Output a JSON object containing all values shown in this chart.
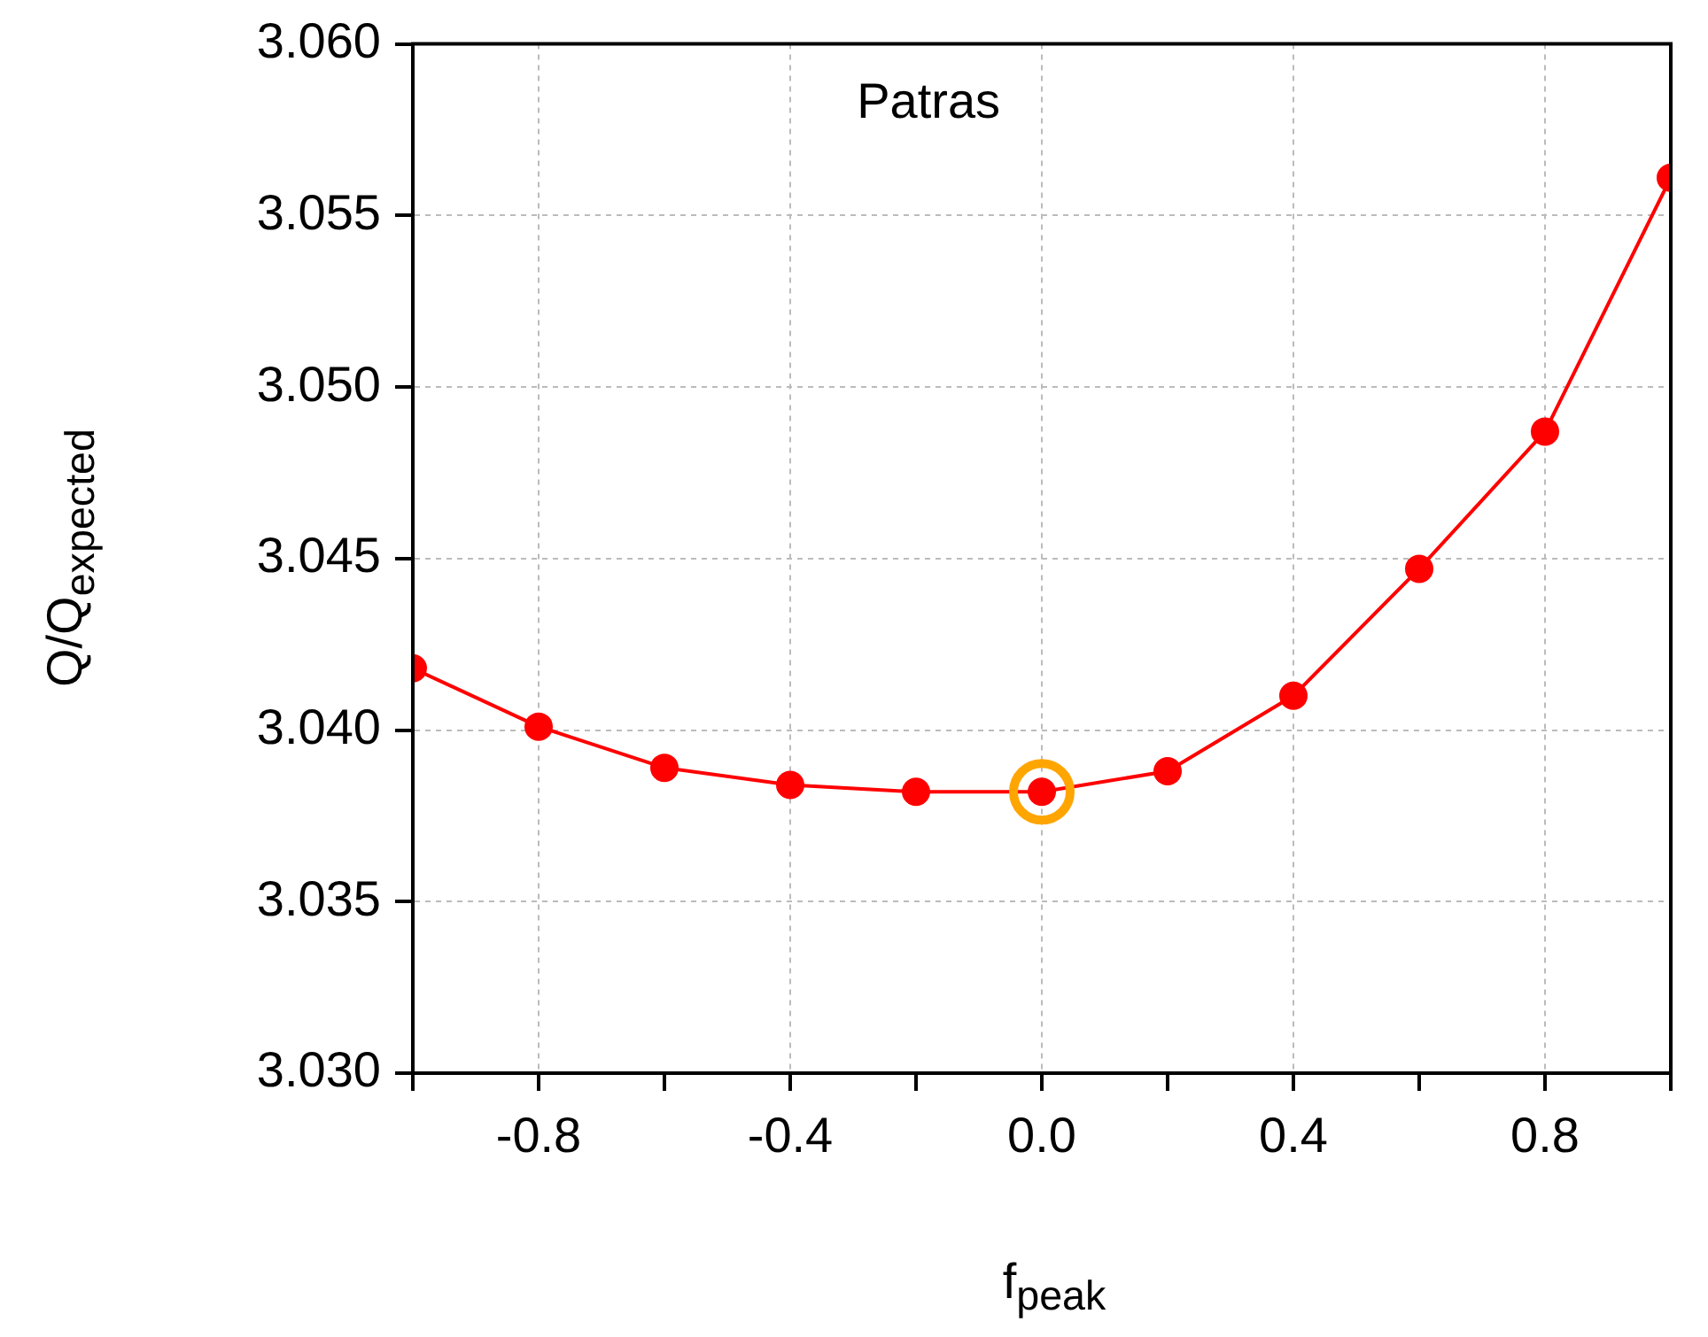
{
  "chart_data": {
    "type": "line",
    "xlabel": "f$_{peak}$",
    "ylabel": "Q/Q$_{expected}$",
    "annotations": [
      "Patras"
    ],
    "xlim": [
      -1,
      1
    ],
    "xticks": [
      {
        "value": -1,
        "label": null
      },
      {
        "value": -0.8,
        "label": "-0.8"
      },
      {
        "value": -0.6,
        "label": null
      },
      {
        "value": -0.4,
        "label": "-0.4"
      },
      {
        "value": -0.2,
        "label": null
      },
      {
        "value": 0,
        "label": "0.0"
      },
      {
        "value": 0.2,
        "label": null
      },
      {
        "value": 0.4,
        "label": "0.4"
      },
      {
        "value": 0.6,
        "label": null
      },
      {
        "value": 0.8,
        "label": "0.8"
      },
      {
        "value": 1,
        "label": null
      }
    ],
    "ylim": [
      3.03,
      3.06
    ],
    "yticks": [
      {
        "value": 3.03,
        "label": "3.030"
      },
      {
        "value": 3.035,
        "label": "3.035"
      },
      {
        "value": 3.04,
        "label": "3.040"
      },
      {
        "value": 3.045,
        "label": "3.045"
      },
      {
        "value": 3.05,
        "label": "3.050"
      },
      {
        "value": 3.055,
        "label": "3.055"
      },
      {
        "value": 3.06,
        "label": "3.060"
      }
    ],
    "grid": true,
    "legend": false,
    "marker": "circle",
    "line_style": "solid",
    "series": [
      {
        "type": "line",
        "color": "#ff0000",
        "x": [
          -1,
          -0.8,
          -0.6,
          -0.4,
          -0.2,
          0,
          0.2,
          0.4,
          0.6,
          0.8,
          1
        ],
        "values": [
          3.0418,
          3.0401,
          3.0389,
          3.0384,
          3.0382,
          3.0382,
          3.0388,
          3.041,
          3.0447,
          3.0487,
          3.0561
        ]
      },
      {
        "type": "scatter",
        "color": "#ffa500",
        "x": [
          0
        ],
        "values": [
          3.0382
        ]
      }
    ]
  }
}
